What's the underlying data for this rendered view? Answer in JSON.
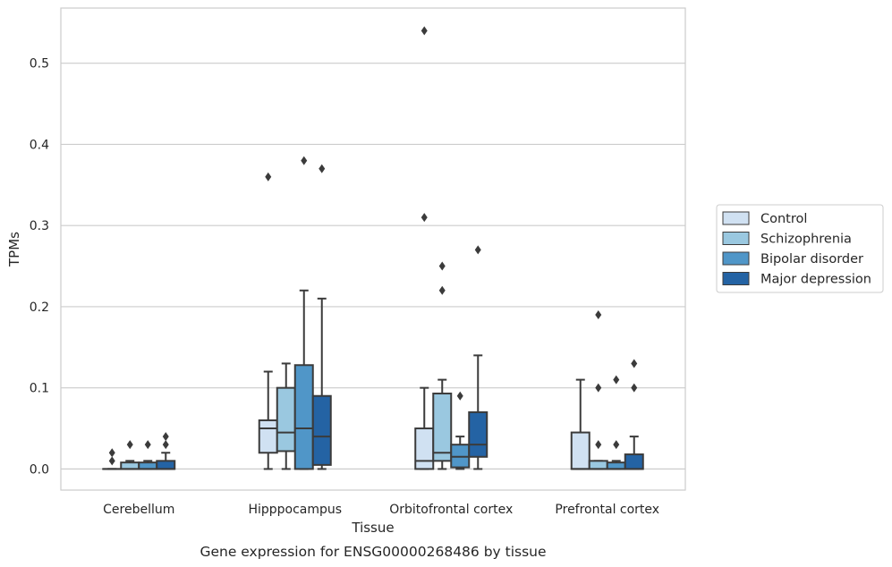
{
  "caption": "Gene expression for ENSG00000268486 by tissue",
  "chart_data": {
    "type": "box",
    "xlabel": "Tissue",
    "ylabel": "TPMs",
    "ylim": [
      -0.026,
      0.568
    ],
    "yticks": [
      0.0,
      0.1,
      0.2,
      0.3,
      0.4,
      0.5
    ],
    "ytick_labels": [
      "0.0",
      "0.1",
      "0.2",
      "0.3",
      "0.4",
      "0.5"
    ],
    "grid": "horizontal",
    "legend_position": "right",
    "categories": [
      "Cerebellum",
      "Hipppocampus",
      "Orbitofrontal cortex",
      "Prefrontal cortex"
    ],
    "series": [
      {
        "name": "Control",
        "color": "#d0e1f2",
        "boxes": [
          {
            "q1": 0.0,
            "median": 0.0,
            "q3": 0.0,
            "whisker_low": 0.0,
            "whisker_high": 0.0,
            "outliers": [
              0.01,
              0.02
            ]
          },
          {
            "q1": 0.02,
            "median": 0.05,
            "q3": 0.06,
            "whisker_low": 0.0,
            "whisker_high": 0.12,
            "outliers": [
              0.36
            ]
          },
          {
            "q1": 0.0,
            "median": 0.01,
            "q3": 0.05,
            "whisker_low": 0.0,
            "whisker_high": 0.1,
            "outliers": [
              0.31,
              0.54
            ]
          },
          {
            "q1": 0.0,
            "median": 0.0,
            "q3": 0.045,
            "whisker_low": 0.0,
            "whisker_high": 0.11,
            "outliers": []
          }
        ]
      },
      {
        "name": "Schizophrenia",
        "color": "#9ac8e0",
        "boxes": [
          {
            "q1": 0.0,
            "median": 0.0,
            "q3": 0.008,
            "whisker_low": 0.0,
            "whisker_high": 0.01,
            "outliers": [
              0.03
            ]
          },
          {
            "q1": 0.022,
            "median": 0.045,
            "q3": 0.1,
            "whisker_low": 0.0,
            "whisker_high": 0.13,
            "outliers": []
          },
          {
            "q1": 0.01,
            "median": 0.02,
            "q3": 0.093,
            "whisker_low": 0.0,
            "whisker_high": 0.11,
            "outliers": [
              0.22,
              0.25
            ]
          },
          {
            "q1": 0.0,
            "median": 0.0,
            "q3": 0.01,
            "whisker_low": 0.0,
            "whisker_high": 0.01,
            "outliers": [
              0.03,
              0.1,
              0.19
            ]
          }
        ]
      },
      {
        "name": "Bipolar disorder",
        "color": "#5096c8",
        "boxes": [
          {
            "q1": 0.0,
            "median": 0.0,
            "q3": 0.008,
            "whisker_low": 0.0,
            "whisker_high": 0.01,
            "outliers": [
              0.03
            ]
          },
          {
            "q1": 0.0,
            "median": 0.05,
            "q3": 0.128,
            "whisker_low": 0.0,
            "whisker_high": 0.22,
            "outliers": [
              0.38
            ]
          },
          {
            "q1": 0.002,
            "median": 0.015,
            "q3": 0.03,
            "whisker_low": 0.0,
            "whisker_high": 0.04,
            "outliers": [
              0.09
            ]
          },
          {
            "q1": 0.0,
            "median": 0.0,
            "q3": 0.008,
            "whisker_low": 0.0,
            "whisker_high": 0.01,
            "outliers": [
              0.03,
              0.11
            ]
          }
        ]
      },
      {
        "name": "Major depression",
        "color": "#2463a4",
        "boxes": [
          {
            "q1": 0.0,
            "median": 0.0,
            "q3": 0.01,
            "whisker_low": 0.0,
            "whisker_high": 0.02,
            "outliers": [
              0.03,
              0.04
            ]
          },
          {
            "q1": 0.005,
            "median": 0.04,
            "q3": 0.09,
            "whisker_low": 0.0,
            "whisker_high": 0.21,
            "outliers": [
              0.37
            ]
          },
          {
            "q1": 0.015,
            "median": 0.03,
            "q3": 0.07,
            "whisker_low": 0.0,
            "whisker_high": 0.14,
            "outliers": [
              0.27
            ]
          },
          {
            "q1": 0.0,
            "median": 0.0,
            "q3": 0.018,
            "whisker_low": 0.0,
            "whisker_high": 0.04,
            "outliers": [
              0.1,
              0.13
            ]
          }
        ]
      }
    ]
  }
}
